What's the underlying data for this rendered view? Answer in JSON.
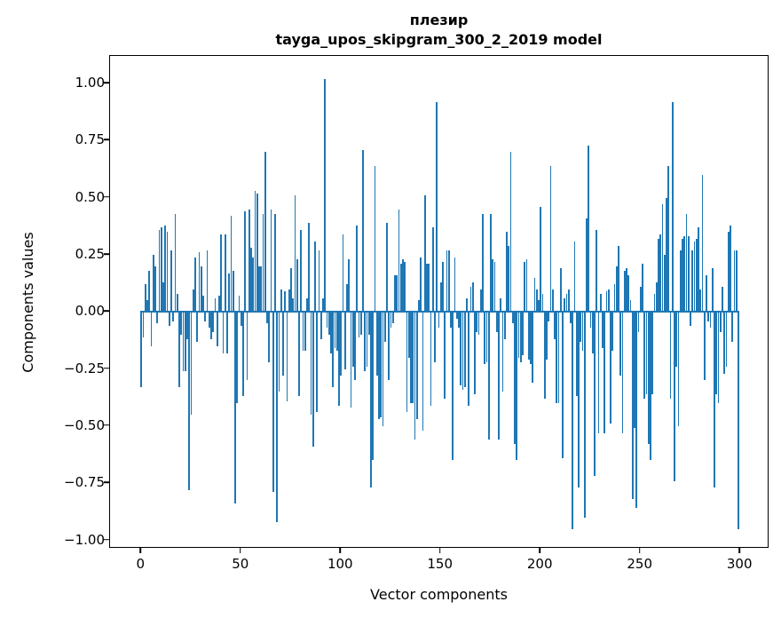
{
  "chart_data": {
    "type": "bar",
    "title_line1": "плезир",
    "title_line2": "tayga_upos_skipgram_300_2_2019 model",
    "xlabel": "Vector components",
    "ylabel": "Components values",
    "bar_color": "#1f77b4",
    "xlim": [
      -15.7,
      314.6
    ],
    "ylim": [
      -1.037,
      1.121
    ],
    "xticks": [
      0,
      50,
      100,
      150,
      200,
      250,
      300
    ],
    "xtick_labels": [
      "0",
      "50",
      "100",
      "150",
      "200",
      "250",
      "300"
    ],
    "yticks": [
      1.0,
      0.75,
      0.5,
      0.25,
      0.0,
      -0.25,
      -0.5,
      -0.75,
      -1.0
    ],
    "ytick_labels": [
      "1.00",
      "0.75",
      "0.50",
      "0.25",
      "0.00",
      "−0.25",
      "−0.50",
      "−0.75",
      "−1.00"
    ],
    "grid": false,
    "legend": null,
    "x": "component index 0..299",
    "values": [
      -0.33,
      -0.11,
      0.12,
      0.05,
      0.18,
      -0.15,
      0.25,
      0.2,
      -0.05,
      0.36,
      0.37,
      0.13,
      0.38,
      0.35,
      -0.06,
      0.27,
      -0.04,
      0.43,
      0.08,
      -0.33,
      -0.1,
      -0.26,
      -0.26,
      -0.12,
      -0.78,
      -0.45,
      0.1,
      0.24,
      -0.13,
      0.26,
      0.2,
      0.07,
      -0.04,
      0.27,
      -0.07,
      -0.12,
      -0.09,
      0.06,
      -0.15,
      0.07,
      0.34,
      -0.18,
      0.34,
      -0.18,
      0.17,
      0.42,
      0.18,
      -0.84,
      -0.4,
      0.07,
      -0.06,
      -0.37,
      0.44,
      -0.3,
      0.45,
      0.28,
      0.24,
      0.53,
      0.52,
      0.2,
      0.2,
      0.43,
      0.7,
      -0.05,
      -0.22,
      0.45,
      -0.79,
      0.43,
      -0.92,
      -0.35,
      0.1,
      -0.28,
      0.09,
      -0.39,
      0.1,
      0.19,
      0.06,
      0.51,
      0.23,
      -0.37,
      0.36,
      -0.17,
      -0.17,
      0.06,
      0.39,
      -0.45,
      -0.59,
      0.31,
      -0.44,
      0.27,
      -0.12,
      0.06,
      1.02,
      -0.07,
      -0.1,
      -0.18,
      -0.33,
      -0.16,
      -0.17,
      -0.41,
      -0.28,
      0.34,
      -0.25,
      0.12,
      0.23,
      -0.42,
      -0.24,
      -0.3,
      0.38,
      -0.11,
      -0.1,
      0.71,
      -0.26,
      -0.24,
      -0.1,
      -0.77,
      -0.65,
      0.64,
      -0.28,
      -0.47,
      -0.46,
      -0.5,
      -0.13,
      0.39,
      -0.3,
      -0.07,
      -0.05,
      0.16,
      0.16,
      0.45,
      0.21,
      0.23,
      0.22,
      -0.44,
      -0.2,
      -0.4,
      -0.4,
      -0.56,
      -0.47,
      0.05,
      0.24,
      -0.52,
      0.51,
      0.21,
      0.21,
      -0.41,
      0.37,
      -0.22,
      0.92,
      -0.07,
      0.13,
      0.22,
      -0.38,
      0.27,
      0.27,
      -0.07,
      -0.65,
      0.24,
      -0.03,
      -0.07,
      -0.32,
      -0.34,
      -0.33,
      0.06,
      -0.41,
      0.11,
      0.13,
      -0.36,
      -0.09,
      -0.1,
      0.1,
      0.43,
      -0.23,
      -0.22,
      -0.56,
      0.43,
      0.23,
      0.22,
      -0.09,
      -0.56,
      0.06,
      -0.35,
      -0.12,
      0.35,
      0.29,
      0.7,
      -0.05,
      -0.58,
      -0.65,
      -0.2,
      -0.22,
      -0.19,
      0.22,
      0.23,
      -0.21,
      -0.23,
      -0.31,
      0.15,
      0.1,
      0.05,
      0.46,
      0.08,
      -0.38,
      -0.21,
      -0.04,
      0.64,
      0.1,
      -0.12,
      -0.4,
      -0.4,
      0.19,
      -0.64,
      0.06,
      0.08,
      0.1,
      -0.05,
      -0.95,
      0.31,
      -0.37,
      -0.77,
      -0.13,
      -0.17,
      -0.9,
      0.41,
      0.73,
      -0.07,
      -0.18,
      -0.72,
      0.36,
      -0.53,
      0.08,
      -0.16,
      -0.53,
      0.09,
      0.1,
      -0.49,
      -0.17,
      0.12,
      0.2,
      0.29,
      -0.28,
      -0.53,
      0.18,
      0.19,
      0.16,
      0.05,
      -0.82,
      -0.51,
      -0.86,
      -0.09,
      0.11,
      0.21,
      -0.38,
      -0.36,
      -0.58,
      -0.65,
      -0.36,
      0.08,
      0.13,
      0.32,
      0.34,
      0.47,
      0.25,
      0.5,
      0.64,
      -0.38,
      0.92,
      -0.74,
      -0.24,
      -0.5,
      0.27,
      0.32,
      0.33,
      0.43,
      0.33,
      -0.06,
      0.27,
      0.31,
      0.32,
      0.37,
      0.1,
      0.6,
      -0.3,
      0.16,
      -0.04,
      -0.07,
      0.19,
      -0.77,
      -0.36,
      -0.4,
      -0.09,
      0.11,
      -0.27,
      -0.24,
      0.35,
      0.38,
      -0.13,
      0.27,
      0.27,
      -0.95
    ]
  }
}
